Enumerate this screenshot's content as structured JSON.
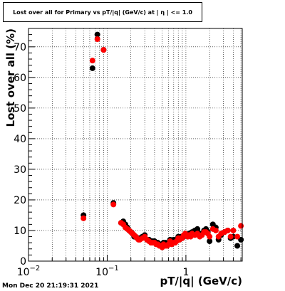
{
  "title": "Lost over all for Primary vs pT/|q| (GeV/c) at | η | <= 1.0",
  "timestamp": "Mon Dec 20 21:19:31 2021",
  "chart_data": {
    "type": "scatter",
    "title": "Lost over all for Primary vs pT/|q| (GeV/c) at | η | <= 1.0",
    "xlabel": "pT/|q| (GeV/c)",
    "ylabel": "Lost over all (%)",
    "xscale": "log",
    "xlim": [
      0.01,
      5.2
    ],
    "ylim": [
      0,
      76
    ],
    "grid": true,
    "xticks": [
      {
        "value": 0.01,
        "label": "10",
        "exp": "−2"
      },
      {
        "value": 0.1,
        "label": "10",
        "exp": "−1"
      },
      {
        "value": 1,
        "label": "1",
        "exp": ""
      }
    ],
    "yticks": [
      0,
      10,
      20,
      30,
      40,
      50,
      60,
      70
    ],
    "colors": {
      "black_series": "#000000",
      "red_series": "#ff0000"
    },
    "series": [
      {
        "color": "#000000",
        "x": [
          0.05,
          0.065,
          0.075,
          0.09,
          0.12,
          0.15,
          0.16,
          0.17,
          0.18,
          0.19,
          0.2,
          0.21,
          0.22,
          0.23,
          0.24,
          0.25,
          0.26,
          0.28,
          0.3,
          0.32,
          0.34,
          0.36,
          0.38,
          0.4,
          0.42,
          0.44,
          0.46,
          0.48,
          0.5,
          0.52,
          0.55,
          0.58,
          0.6,
          0.63,
          0.66,
          0.7,
          0.73,
          0.76,
          0.8,
          0.83,
          0.87,
          0.9,
          0.94,
          0.98,
          1.05,
          1.1,
          1.15,
          1.2,
          1.3,
          1.4,
          1.5,
          1.6,
          1.7,
          1.8,
          1.9,
          2.0,
          2.2,
          2.4,
          2.6,
          2.8,
          3.1,
          3.4,
          3.7,
          4.0,
          4.5,
          5.0
        ],
        "y": [
          15,
          63,
          74,
          69,
          19,
          12.5,
          13,
          12,
          11,
          10,
          9.5,
          9,
          8,
          8,
          7.5,
          7.5,
          7.5,
          8,
          8.5,
          7,
          7,
          6.5,
          6.5,
          6.5,
          6,
          6,
          5.5,
          5.5,
          5,
          6,
          6,
          5.5,
          6,
          7,
          6,
          7,
          6.5,
          7,
          8,
          7,
          8,
          7.5,
          8,
          8.5,
          8,
          9,
          8.5,
          9.5,
          10,
          10.5,
          9,
          9,
          10,
          10.5,
          9.5,
          6.5,
          12,
          11,
          7,
          8.5,
          9.5,
          10,
          7.5,
          8,
          5,
          7
        ]
      },
      {
        "color": "#ff0000",
        "x": [
          0.05,
          0.065,
          0.075,
          0.09,
          0.12,
          0.15,
          0.16,
          0.17,
          0.18,
          0.19,
          0.2,
          0.21,
          0.22,
          0.23,
          0.24,
          0.25,
          0.26,
          0.28,
          0.3,
          0.32,
          0.34,
          0.36,
          0.38,
          0.4,
          0.42,
          0.44,
          0.46,
          0.48,
          0.5,
          0.52,
          0.55,
          0.58,
          0.6,
          0.63,
          0.66,
          0.7,
          0.73,
          0.76,
          0.8,
          0.83,
          0.87,
          0.9,
          0.94,
          0.98,
          1.05,
          1.1,
          1.15,
          1.2,
          1.3,
          1.4,
          1.5,
          1.6,
          1.7,
          1.8,
          1.9,
          2.0,
          2.2,
          2.4,
          2.6,
          2.8,
          3.1,
          3.4,
          3.7,
          4.0,
          4.5,
          5.0
        ],
        "y": [
          14,
          65.5,
          72.5,
          69,
          18.5,
          12.5,
          12,
          11,
          10.5,
          10,
          9.5,
          9,
          8.5,
          8,
          7.5,
          7,
          7,
          7.5,
          8,
          7,
          6.5,
          6,
          6,
          6,
          5.5,
          5.5,
          5,
          5,
          4.5,
          5.5,
          5,
          5,
          5.5,
          6.5,
          5.5,
          6,
          6,
          6.5,
          7.5,
          7,
          7.5,
          7.5,
          8.5,
          9,
          8,
          8.5,
          8,
          9,
          8.5,
          9,
          8,
          8.5,
          9.5,
          9.5,
          9,
          8,
          10.5,
          10,
          8,
          9,
          9.5,
          10,
          8,
          10,
          8,
          11.5
        ]
      }
    ]
  }
}
